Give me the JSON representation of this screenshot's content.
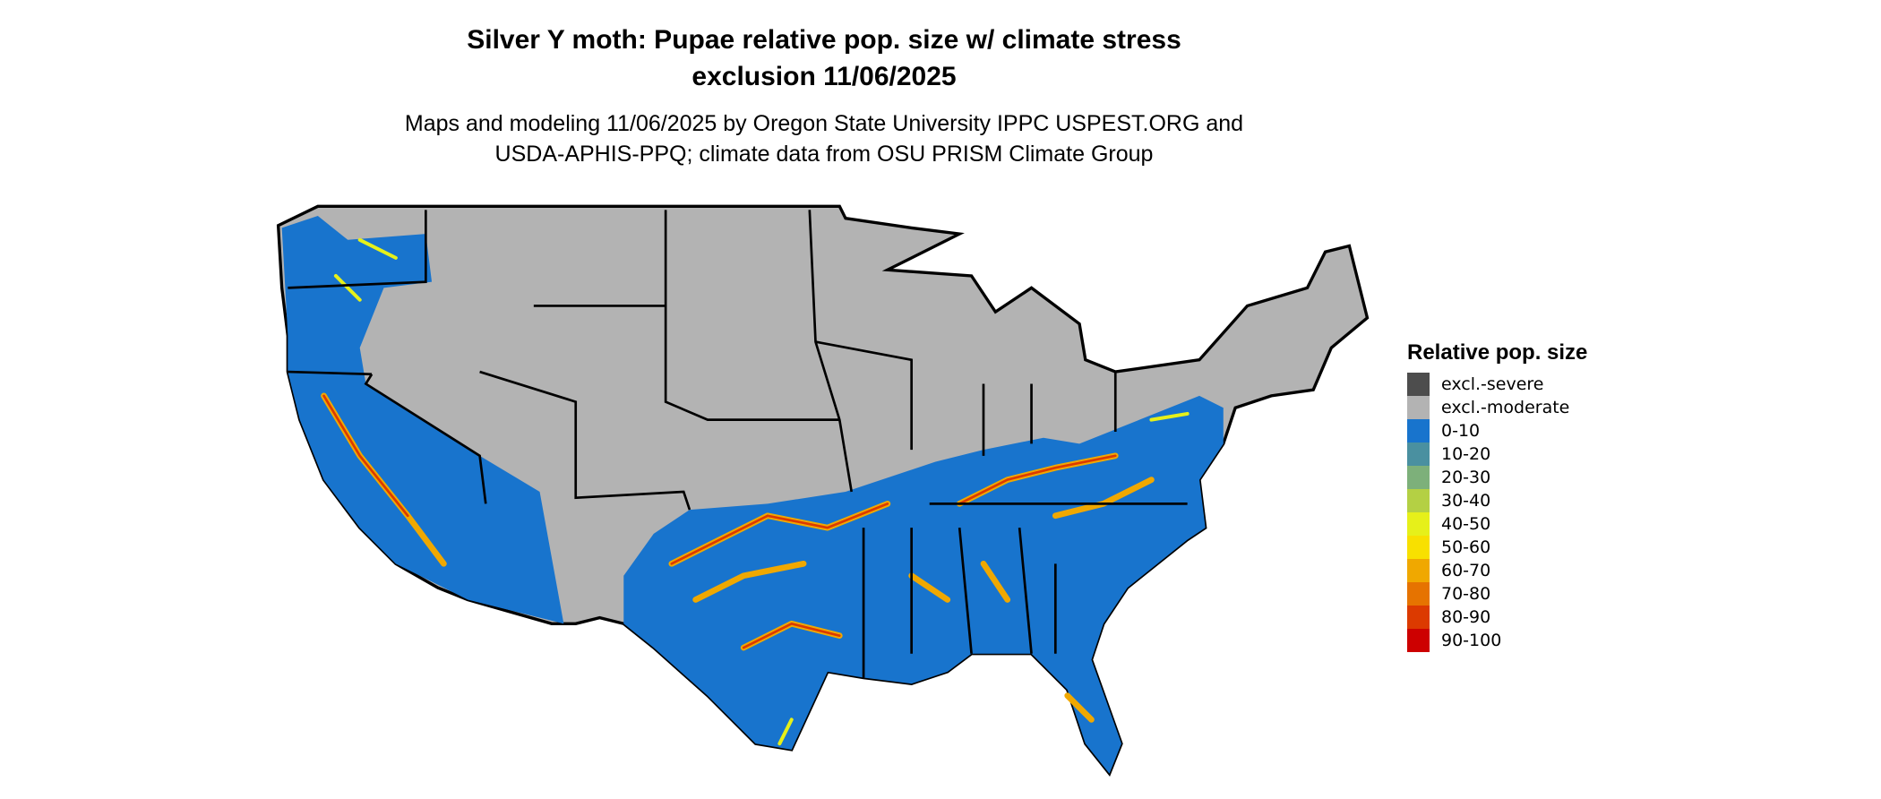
{
  "title_line1": "Silver Y moth: Pupae relative pop. size w/ climate stress",
  "title_line2": "exclusion 11/06/2025",
  "subtitle_line1": "Maps and modeling 11/06/2025 by Oregon State University IPPC USPEST.ORG and",
  "subtitle_line2": "USDA-APHIS-PPQ; climate data from OSU PRISM Climate Group",
  "legend": {
    "title": "Relative pop. size",
    "items": [
      {
        "label": "excl.-severe",
        "color": "#4d4d4d"
      },
      {
        "label": "excl.-moderate",
        "color": "#b3b3b3"
      },
      {
        "label": "0-10",
        "color": "#1874cd"
      },
      {
        "label": "10-20",
        "color": "#4a90a0"
      },
      {
        "label": "20-30",
        "color": "#7db07a"
      },
      {
        "label": "30-40",
        "color": "#b4d044"
      },
      {
        "label": "40-50",
        "color": "#e6f01a"
      },
      {
        "label": "50-60",
        "color": "#f8e000"
      },
      {
        "label": "60-70",
        "color": "#f0a800"
      },
      {
        "label": "70-80",
        "color": "#e67300"
      },
      {
        "label": "80-90",
        "color": "#dc3a00"
      },
      {
        "label": "90-100",
        "color": "#cd0000"
      }
    ]
  }
}
